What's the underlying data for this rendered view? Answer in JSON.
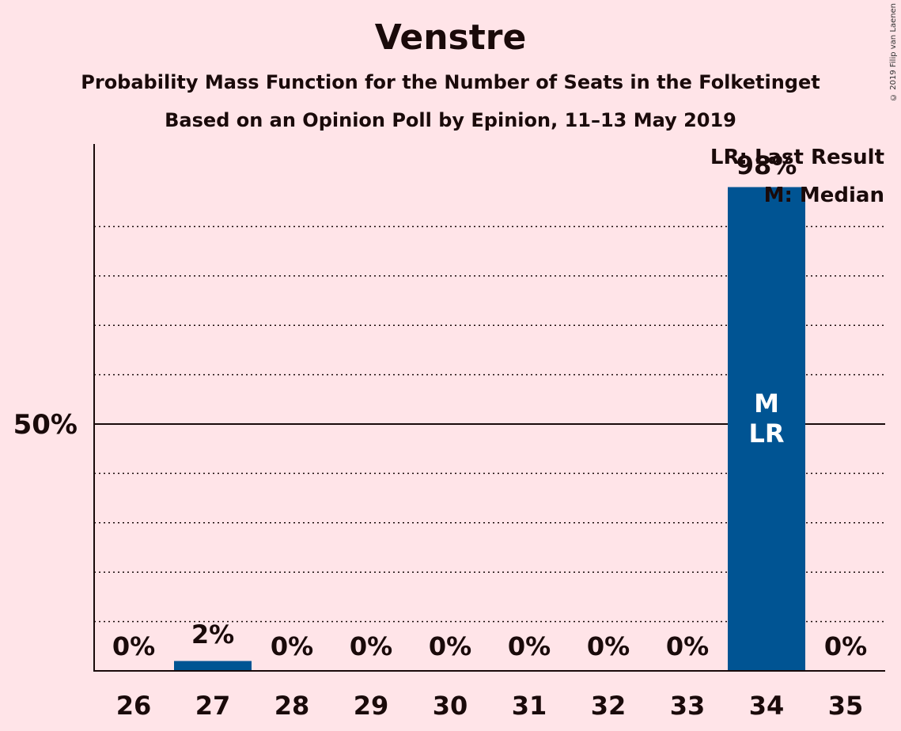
{
  "header": {
    "title": "Venstre",
    "subtitle1": "Probability Mass Function for the Number of Seats in the Folketinget",
    "subtitle2": "Based on an Opinion Poll by Epinion, 11–13 May 2019",
    "copyright": "© 2019 Filip van Laenen"
  },
  "legend": {
    "last_result": "LR: Last Result",
    "median": "M: Median"
  },
  "colors": {
    "background": "#ffe4e8",
    "bar": "#005493",
    "text": "#1a0a0a"
  },
  "chart_data": {
    "type": "bar",
    "categories": [
      "26",
      "27",
      "28",
      "29",
      "30",
      "31",
      "32",
      "33",
      "34",
      "35"
    ],
    "values": [
      0,
      2,
      0,
      0,
      0,
      0,
      0,
      0,
      98,
      0
    ],
    "value_labels": [
      "0%",
      "2%",
      "0%",
      "0%",
      "0%",
      "0%",
      "0%",
      "0%",
      "98%",
      "0%"
    ],
    "ylim": [
      0,
      100
    ],
    "ytick_label": "50%",
    "ytick_value": 50,
    "grid_values": [
      10,
      20,
      30,
      40,
      60,
      70,
      80,
      90
    ],
    "bar_marks": {
      "34": [
        "M",
        "LR"
      ]
    },
    "grid": true,
    "legend_position": "top-right"
  }
}
